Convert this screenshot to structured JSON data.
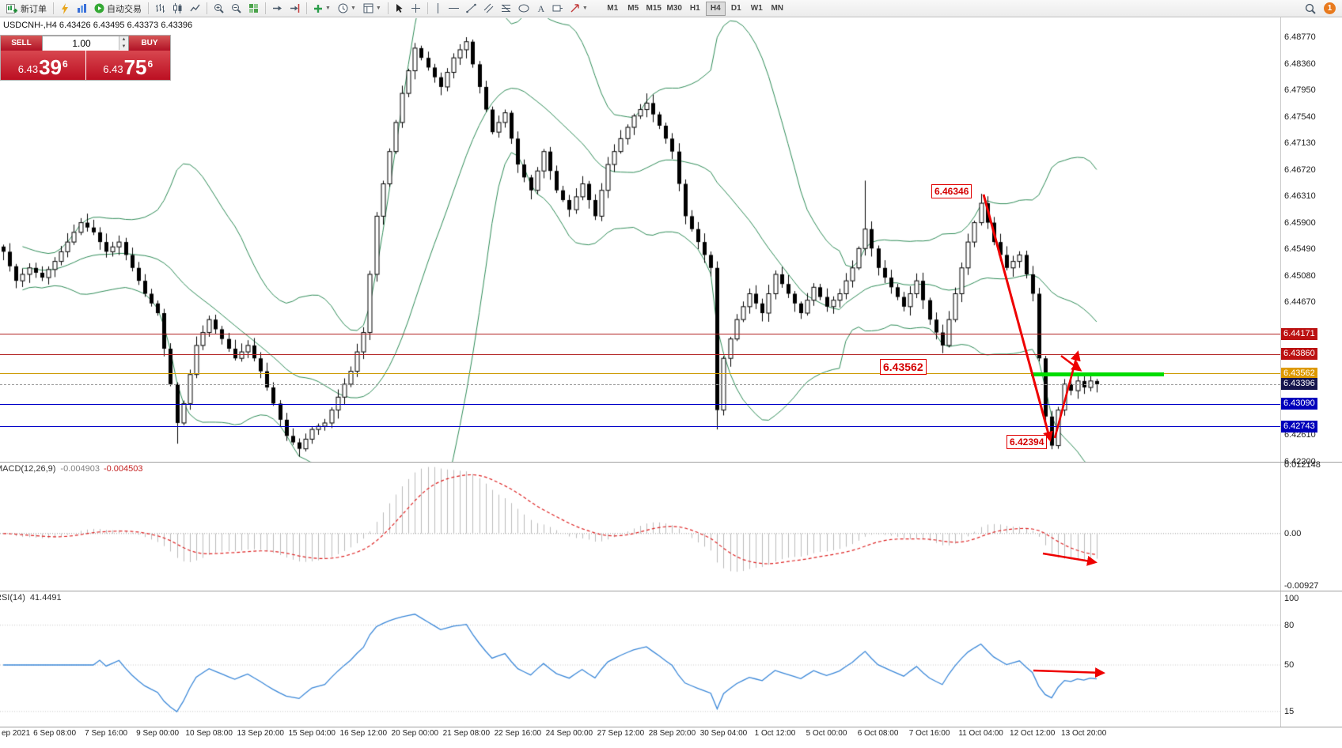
{
  "toolbar": {
    "new_order_label": "新订单",
    "autotrading_label": "自动交易",
    "timeframes": [
      "M1",
      "M5",
      "M15",
      "M30",
      "H1",
      "H4",
      "D1",
      "W1",
      "MN"
    ],
    "active_timeframe": "H4",
    "notification_count": "1"
  },
  "chart_header": {
    "symbol_title": "USDCNH-,H4  6.43426 6.43495 6.43373 6.43396"
  },
  "trade_panel": {
    "sell_label": "SELL",
    "buy_label": "BUY",
    "volume": "1.00",
    "sell_price_base": "6.43",
    "sell_price_main": "39",
    "sell_price_sup": "6",
    "buy_price_base": "6.43",
    "buy_price_main": "75",
    "buy_price_sup": "6"
  },
  "indicators": {
    "macd": {
      "name": "MACD(12,26,9)",
      "value1": "-0.004903",
      "value2": "-0.004503",
      "axis_labels": [
        "0.012148",
        "0.00",
        "-0.00927"
      ]
    },
    "rsi": {
      "name": "RSI(14)",
      "value": "41.4491",
      "axis_labels": [
        "100",
        "80",
        "50",
        "15"
      ]
    }
  },
  "annotations": {
    "peak_label": "6.46346",
    "mid_label": "6.43562",
    "low_label": "6.42394"
  },
  "chart_data": {
    "type": "candlestick",
    "title": "USDCNH-,H4",
    "ohlc_current": {
      "open": 6.43426,
      "high": 6.43495,
      "low": 6.43373,
      "close": 6.43396
    },
    "ylim": [
      6.422,
      6.4877
    ],
    "grid": false,
    "bar_count": 171,
    "price_waypoints": [
      [
        0,
        6.4545
      ],
      [
        2,
        6.45
      ],
      [
        4,
        6.452
      ],
      [
        6,
        6.4505
      ],
      [
        8,
        6.453
      ],
      [
        10,
        6.456
      ],
      [
        12,
        6.459
      ],
      [
        14,
        6.4575
      ],
      [
        16,
        6.4545
      ],
      [
        18,
        6.456
      ],
      [
        20,
        6.452
      ],
      [
        22,
        6.448
      ],
      [
        24,
        6.445
      ],
      [
        26,
        6.434
      ],
      [
        27,
        6.428
      ],
      [
        28,
        6.431
      ],
      [
        30,
        6.44
      ],
      [
        32,
        6.444
      ],
      [
        34,
        6.441
      ],
      [
        36,
        6.438
      ],
      [
        38,
        6.44
      ],
      [
        40,
        6.436
      ],
      [
        42,
        6.431
      ],
      [
        44,
        6.426
      ],
      [
        46,
        6.424
      ],
      [
        48,
        6.427
      ],
      [
        50,
        6.428
      ],
      [
        52,
        6.432
      ],
      [
        54,
        6.436
      ],
      [
        56,
        6.442
      ],
      [
        58,
        6.46
      ],
      [
        60,
        6.47
      ],
      [
        62,
        6.479
      ],
      [
        64,
        6.486
      ],
      [
        66,
        6.483
      ],
      [
        68,
        6.48
      ],
      [
        70,
        6.4845
      ],
      [
        72,
        6.487
      ],
      [
        74,
        6.48
      ],
      [
        76,
        6.473
      ],
      [
        78,
        6.476
      ],
      [
        80,
        6.468
      ],
      [
        82,
        6.464
      ],
      [
        84,
        6.47
      ],
      [
        86,
        6.464
      ],
      [
        88,
        6.461
      ],
      [
        90,
        6.465
      ],
      [
        92,
        6.46
      ],
      [
        94,
        6.468
      ],
      [
        96,
        6.472
      ],
      [
        98,
        6.4755
      ],
      [
        100,
        6.4775
      ],
      [
        102,
        6.474
      ],
      [
        104,
        6.47
      ],
      [
        106,
        6.46
      ],
      [
        108,
        6.456
      ],
      [
        110,
        6.452
      ],
      [
        111,
        6.43
      ],
      [
        112,
        6.438
      ],
      [
        114,
        6.444
      ],
      [
        116,
        6.448
      ],
      [
        118,
        6.445
      ],
      [
        120,
        6.451
      ],
      [
        122,
        6.448
      ],
      [
        124,
        6.445
      ],
      [
        126,
        6.449
      ],
      [
        128,
        6.446
      ],
      [
        130,
        6.448
      ],
      [
        132,
        6.452
      ],
      [
        134,
        6.458
      ],
      [
        136,
        6.452
      ],
      [
        138,
        6.449
      ],
      [
        140,
        6.446
      ],
      [
        142,
        6.45
      ],
      [
        144,
        6.444
      ],
      [
        146,
        6.44
      ],
      [
        148,
        6.448
      ],
      [
        150,
        6.456
      ],
      [
        152,
        6.462
      ],
      [
        154,
        6.456
      ],
      [
        156,
        6.452
      ],
      [
        158,
        6.454
      ],
      [
        160,
        6.448
      ],
      [
        161,
        6.438
      ],
      [
        162,
        6.429
      ],
      [
        163,
        6.4245
      ],
      [
        164,
        6.43
      ],
      [
        165,
        6.434
      ],
      [
        166,
        6.433
      ],
      [
        167,
        6.4345
      ],
      [
        168,
        6.4335
      ],
      [
        169,
        6.4345
      ],
      [
        170,
        6.434
      ]
    ],
    "wick_overrides": {
      "12": {
        "h": 6.4597
      },
      "27": {
        "l": 6.4248
      },
      "46": {
        "l": 6.4228
      },
      "64": {
        "h": 6.4868
      },
      "72": {
        "h": 6.4877
      },
      "100": {
        "h": 6.479
      },
      "111": {
        "l": 6.427
      },
      "134": {
        "h": 6.4655
      },
      "152": {
        "h": 6.46346
      },
      "163": {
        "l": 6.42394
      }
    },
    "overlays": [
      {
        "name": "Bollinger Bands",
        "period": 20,
        "deviation": 2,
        "color": "#2E8B57"
      }
    ],
    "levels": [
      {
        "name": "resistance-line-1",
        "price": 6.44171,
        "color": "#b22222",
        "style": "solid"
      },
      {
        "name": "resistance-line-2",
        "price": 6.4386,
        "color": "#b22222",
        "style": "solid"
      },
      {
        "name": "pivot-line",
        "price": 6.43562,
        "color": "#cc9900",
        "style": "solid"
      },
      {
        "name": "bid-price-line",
        "price": 6.43396,
        "color": "#999999",
        "style": "dashed"
      },
      {
        "name": "support-line-1",
        "price": 6.4309,
        "color": "#0000c8",
        "style": "solid"
      },
      {
        "name": "support-line-2",
        "price": 6.42743,
        "color": "#0000c8",
        "style": "solid"
      }
    ],
    "price_axis_labels": [
      6.4877,
      6.4836,
      6.4795,
      6.4754,
      6.4713,
      6.4672,
      6.4631,
      6.459,
      6.4549,
      6.4508,
      6.4467,
      6.4261,
      6.422
    ],
    "price_axis_badges": [
      {
        "price": 6.44171,
        "bg": "#bb1111"
      },
      {
        "price": 6.4386,
        "bg": "#bb1111"
      },
      {
        "price": 6.43562,
        "bg": "#dd9900"
      },
      {
        "price": 6.43396,
        "bg": "#15154d"
      },
      {
        "price": 6.4309,
        "bg": "#0000bb"
      },
      {
        "price": 6.42743,
        "bg": "#0000bb"
      }
    ],
    "macd": {
      "range": [
        -0.00927,
        0.012148
      ],
      "histogram_color": "#bbbbbb",
      "signal_color": "#dd2222"
    },
    "rsi": {
      "levels": [
        80,
        50,
        15
      ],
      "color": "#3a87d8"
    },
    "time_labels": [
      "ep 2021",
      "6 Sep 08:00",
      "7 Sep 16:00",
      "9 Sep 00:00",
      "10 Sep 08:00",
      "13 Sep 20:00",
      "15 Sep 04:00",
      "16 Sep 12:00",
      "20 Sep 00:00",
      "21 Sep 08:00",
      "22 Sep 16:00",
      "24 Sep 00:00",
      "27 Sep 12:00",
      "28 Sep 20:00",
      "30 Sep 04:00",
      "1 Oct 12:00",
      "5 Oct 00:00",
      "6 Oct 08:00",
      "7 Oct 16:00",
      "11 Oct 04:00",
      "12 Oct 12:00",
      "13 Oct 20:00"
    ]
  }
}
